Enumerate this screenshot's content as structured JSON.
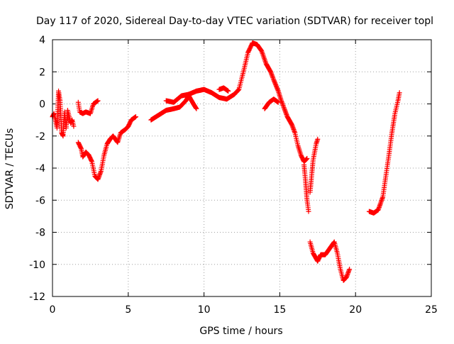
{
  "chart_data": {
    "type": "scatter",
    "title": "Day 117 of 2020, Sidereal Day-to-day VTEC variation (SDTVAR) for receiver topl",
    "xlabel": "GPS time / hours",
    "ylabel": "SDTVAR / TECUs",
    "xlim": [
      0,
      25
    ],
    "ylim": [
      -12,
      4
    ],
    "xticks": [
      "0",
      "5",
      "10",
      "15",
      "20",
      "25"
    ],
    "yticks": [
      "4",
      "2",
      "0",
      "-2",
      "-4",
      "-6",
      "-8",
      "-10",
      "-12"
    ],
    "grid": true,
    "legend": "none",
    "marker": "+",
    "color": "#ff0000",
    "series": [
      {
        "segments": [
          [
            [
              0.0,
              -0.8
            ],
            [
              0.1,
              -0.6
            ],
            [
              0.2,
              -1.0
            ],
            [
              0.3,
              -1.5
            ],
            [
              0.4,
              0.8
            ],
            [
              0.5,
              0.2
            ],
            [
              0.6,
              -1.8
            ],
            [
              0.7,
              -2.0
            ],
            [
              0.8,
              -0.5
            ],
            [
              0.9,
              -1.5
            ],
            [
              1.0,
              -0.4
            ],
            [
              1.1,
              -0.8
            ],
            [
              1.2,
              -1.2
            ],
            [
              1.3,
              -1.0
            ],
            [
              1.4,
              -1.4
            ]
          ],
          [
            [
              1.7,
              0.1
            ],
            [
              1.8,
              -0.5
            ],
            [
              2.0,
              -0.6
            ],
            [
              2.2,
              -0.5
            ],
            [
              2.5,
              -0.6
            ],
            [
              2.7,
              0.0
            ],
            [
              3.0,
              0.2
            ]
          ],
          [
            [
              1.7,
              -2.4
            ],
            [
              1.9,
              -2.8
            ],
            [
              2.0,
              -3.3
            ],
            [
              2.2,
              -3.0
            ],
            [
              2.4,
              -3.2
            ],
            [
              2.6,
              -3.6
            ],
            [
              2.8,
              -4.5
            ],
            [
              3.0,
              -4.7
            ],
            [
              3.2,
              -4.2
            ],
            [
              3.4,
              -3.2
            ],
            [
              3.6,
              -2.5
            ],
            [
              3.8,
              -2.2
            ],
            [
              4.0,
              -2.0
            ],
            [
              4.3,
              -2.4
            ],
            [
              4.5,
              -1.8
            ],
            [
              4.8,
              -1.6
            ],
            [
              5.0,
              -1.4
            ],
            [
              5.2,
              -1.0
            ],
            [
              5.5,
              -0.8
            ]
          ],
          [
            [
              6.5,
              -1.0
            ],
            [
              7.0,
              -0.7
            ],
            [
              7.5,
              -0.4
            ],
            [
              8.0,
              -0.3
            ],
            [
              8.4,
              -0.2
            ],
            [
              8.8,
              0.2
            ],
            [
              9.0,
              0.5
            ],
            [
              9.3,
              0.0
            ],
            [
              9.5,
              -0.3
            ]
          ],
          [
            [
              7.5,
              0.2
            ],
            [
              8.0,
              0.1
            ],
            [
              8.5,
              0.5
            ],
            [
              9.0,
              0.6
            ],
            [
              9.5,
              0.8
            ],
            [
              10.0,
              0.9
            ],
            [
              10.5,
              0.7
            ],
            [
              11.0,
              0.4
            ],
            [
              11.5,
              0.3
            ],
            [
              12.0,
              0.6
            ],
            [
              12.3,
              0.9
            ],
            [
              12.6,
              2.0
            ],
            [
              12.9,
              3.2
            ],
            [
              13.2,
              3.8
            ],
            [
              13.5,
              3.7
            ],
            [
              13.8,
              3.3
            ],
            [
              14.1,
              2.5
            ],
            [
              14.4,
              2.0
            ],
            [
              14.6,
              1.5
            ],
            [
              14.9,
              0.8
            ],
            [
              15.1,
              0.2
            ],
            [
              15.3,
              -0.3
            ],
            [
              15.5,
              -0.8
            ],
            [
              15.8,
              -1.3
            ],
            [
              16.0,
              -1.8
            ],
            [
              16.2,
              -2.6
            ],
            [
              16.4,
              -3.2
            ],
            [
              16.6,
              -3.6
            ],
            [
              16.8,
              -3.4
            ]
          ],
          [
            [
              11.0,
              0.9
            ],
            [
              11.3,
              1.0
            ],
            [
              11.6,
              0.8
            ]
          ],
          [
            [
              14.0,
              -0.3
            ],
            [
              14.3,
              0.1
            ],
            [
              14.6,
              0.3
            ],
            [
              14.9,
              0.1
            ]
          ],
          [
            [
              16.6,
              -3.8
            ],
            [
              16.7,
              -4.8
            ],
            [
              16.8,
              -6.0
            ],
            [
              16.9,
              -6.7
            ]
          ],
          [
            [
              17.0,
              -5.5
            ],
            [
              17.1,
              -4.5
            ],
            [
              17.2,
              -3.5
            ],
            [
              17.4,
              -2.5
            ],
            [
              17.5,
              -2.2
            ]
          ],
          [
            [
              17.0,
              -8.6
            ],
            [
              17.2,
              -9.3
            ],
            [
              17.5,
              -9.8
            ],
            [
              17.7,
              -9.4
            ],
            [
              18.0,
              -9.4
            ],
            [
              18.3,
              -9.0
            ],
            [
              18.6,
              -8.6
            ],
            [
              18.8,
              -9.3
            ],
            [
              19.0,
              -10.3
            ],
            [
              19.2,
              -11.0
            ],
            [
              19.4,
              -10.8
            ],
            [
              19.6,
              -10.3
            ]
          ],
          [
            [
              20.9,
              -6.7
            ],
            [
              21.2,
              -6.8
            ],
            [
              21.5,
              -6.6
            ],
            [
              21.8,
              -5.8
            ],
            [
              22.0,
              -4.5
            ],
            [
              22.2,
              -3.2
            ],
            [
              22.4,
              -1.8
            ],
            [
              22.6,
              -0.6
            ],
            [
              22.8,
              0.2
            ],
            [
              22.9,
              0.7
            ]
          ]
        ]
      }
    ]
  }
}
